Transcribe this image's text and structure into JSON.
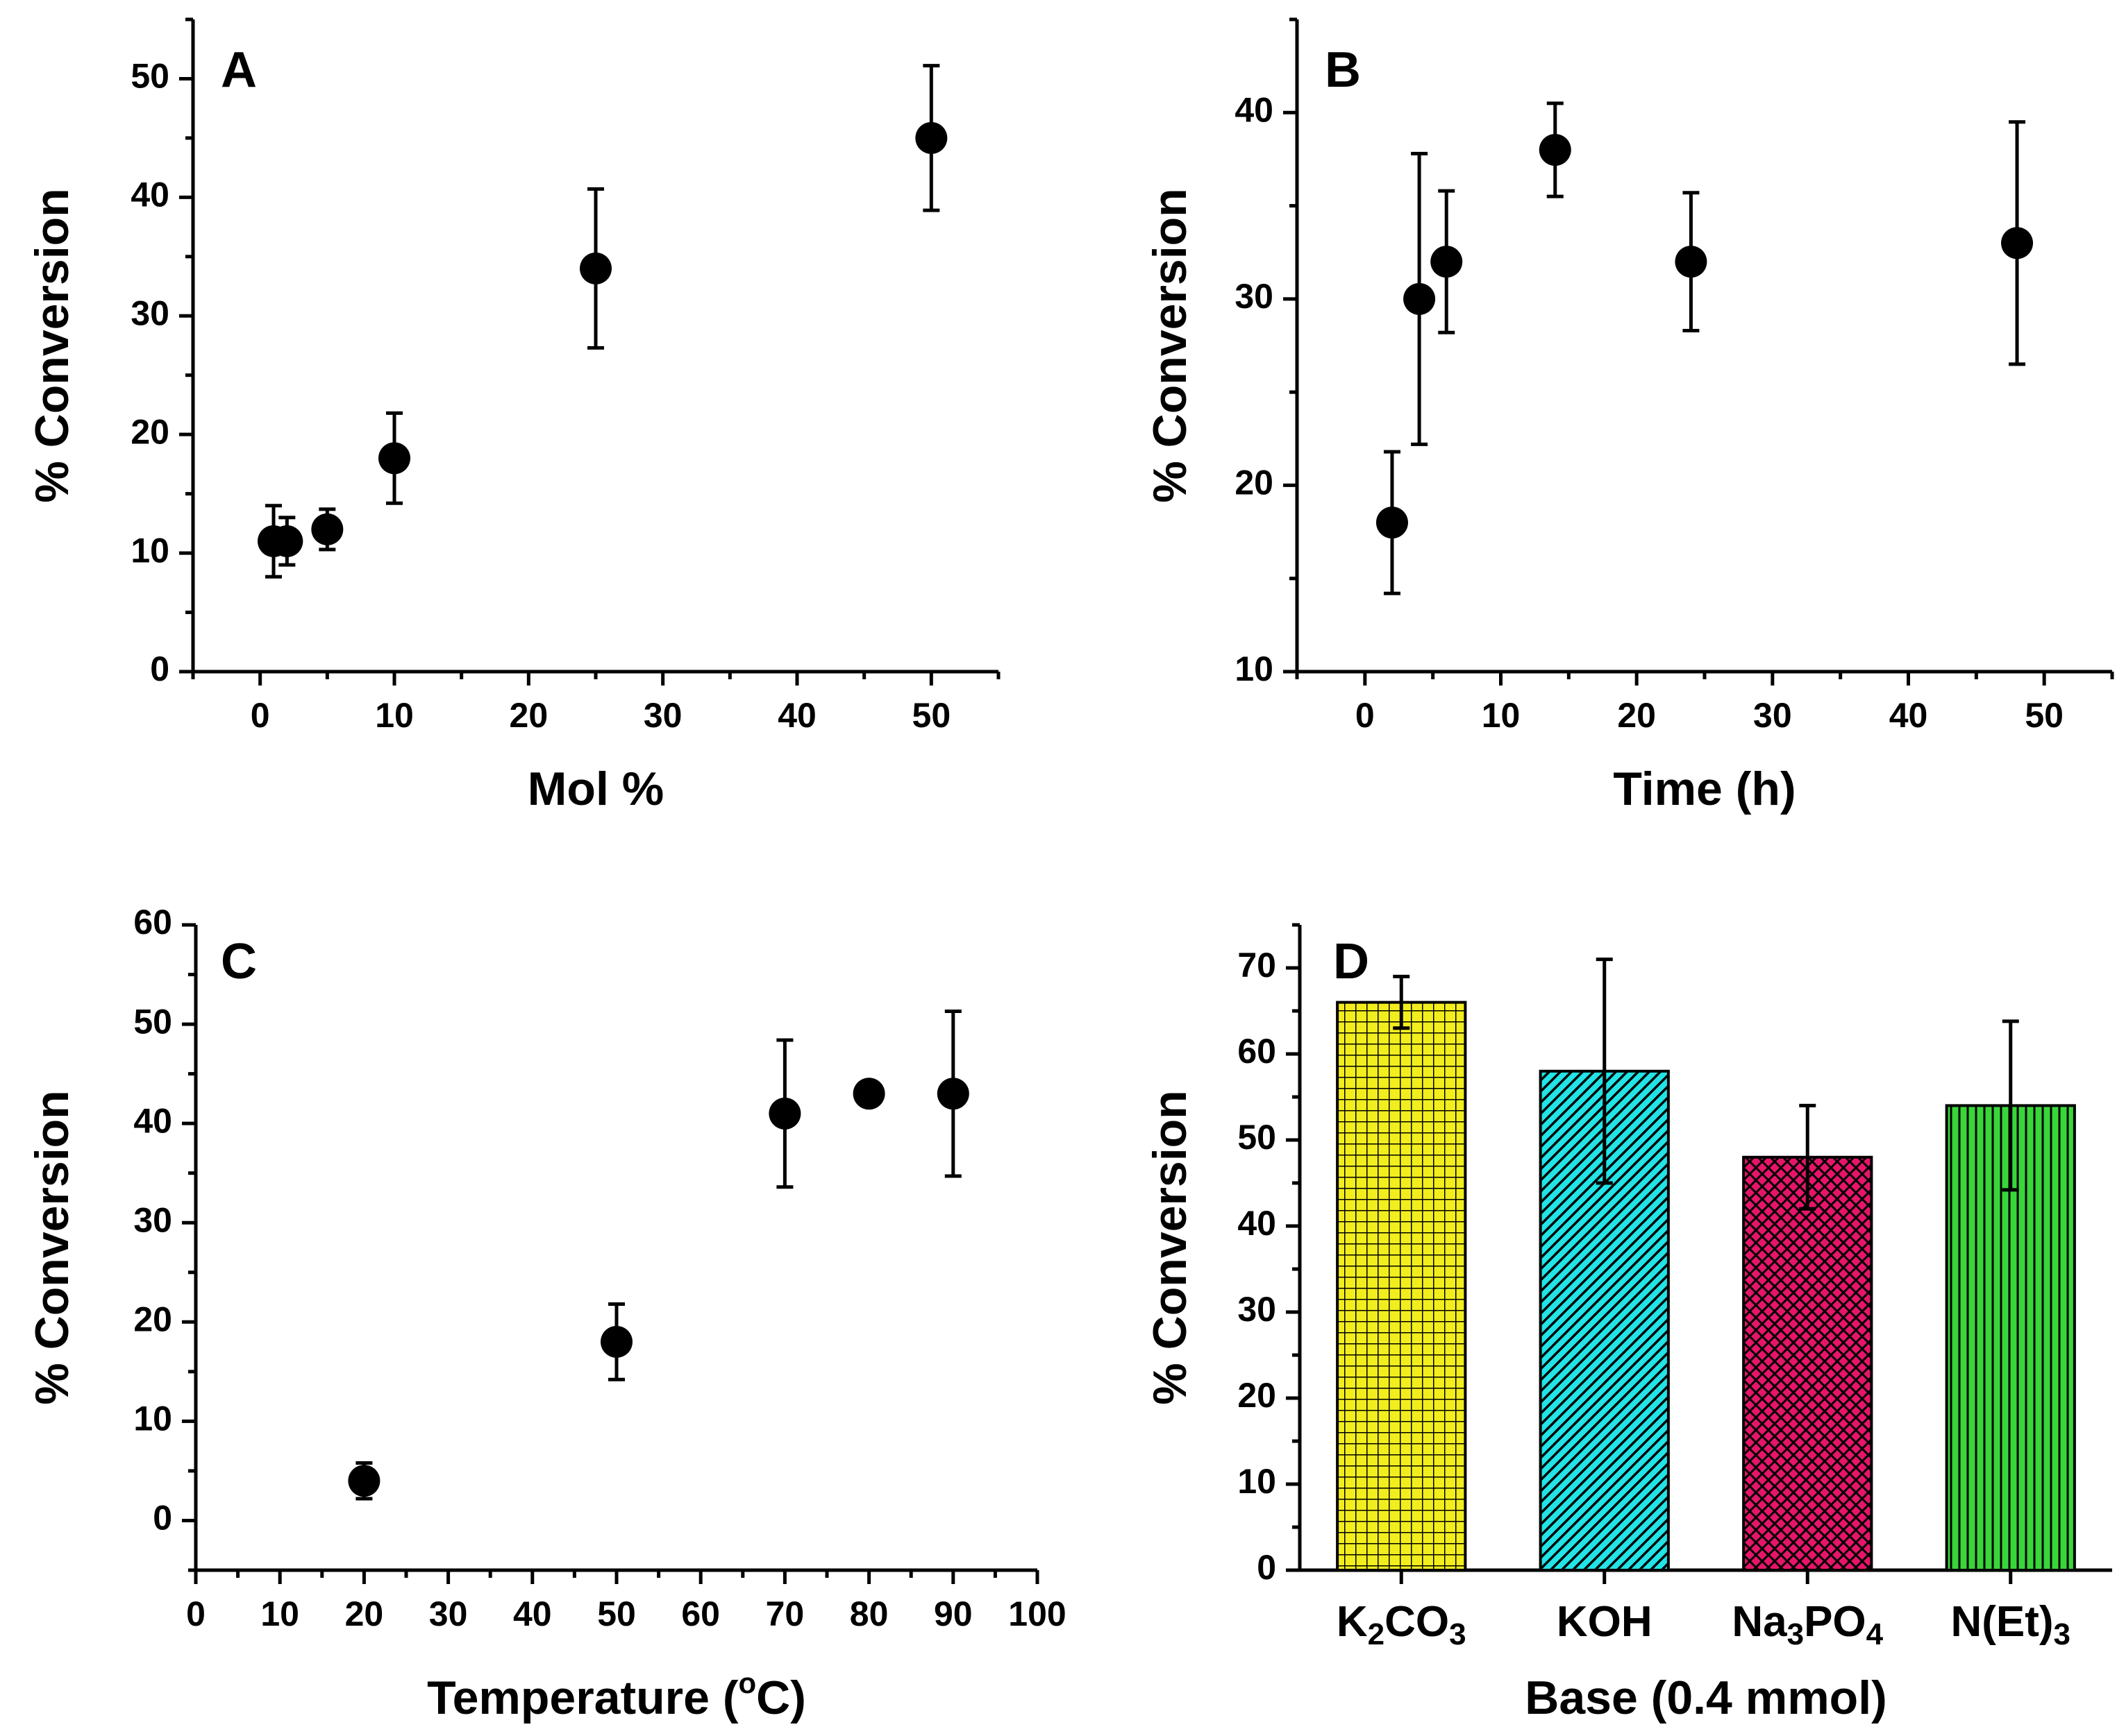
{
  "chart_data": [
    {
      "id": "A",
      "type": "scatter",
      "panel_label": "A",
      "xlabel": "Mol %",
      "ylabel": "% Conversion",
      "xlim": [
        -5,
        55
      ],
      "ylim": [
        0,
        55
      ],
      "xticks": [
        0,
        10,
        20,
        30,
        40,
        50
      ],
      "yticks": [
        0,
        10,
        20,
        30,
        40,
        50
      ],
      "xtick_labels": [
        "0",
        "10",
        "20",
        "30",
        "40",
        "50"
      ],
      "ytick_labels": [
        "0",
        "10",
        "20",
        "30",
        "40",
        "50"
      ],
      "series": [
        {
          "name": "conversion",
          "x": [
            1,
            2,
            5,
            10,
            25,
            50
          ],
          "y": [
            11,
            11,
            12,
            18,
            34,
            45
          ],
          "err": [
            3,
            2,
            1.7,
            3.8,
            6.7,
            6.1
          ]
        }
      ]
    },
    {
      "id": "B",
      "type": "scatter",
      "panel_label": "B",
      "xlabel": "Time (h)",
      "ylabel": "% Conversion",
      "xlim": [
        -5,
        55
      ],
      "ylim": [
        10,
        45
      ],
      "xticks": [
        0,
        10,
        20,
        30,
        40,
        50
      ],
      "yticks": [
        10,
        20,
        30,
        40
      ],
      "xtick_labels": [
        "0",
        "10",
        "20",
        "30",
        "40",
        "50"
      ],
      "ytick_labels": [
        "10",
        "20",
        "30",
        "40"
      ],
      "series": [
        {
          "name": "conversion",
          "x": [
            2,
            4,
            6,
            14,
            24,
            48
          ],
          "y": [
            18,
            30,
            32,
            38,
            32,
            33
          ],
          "err": [
            3.8,
            7.8,
            3.8,
            2.5,
            3.7,
            6.5
          ]
        }
      ]
    },
    {
      "id": "C",
      "type": "scatter",
      "panel_label": "C",
      "xlabel": "Temperature (",
      "xlabel_deg": "o",
      "xlabel_end": "C)",
      "ylabel": "% Conversion",
      "xlim": [
        0,
        100
      ],
      "ylim": [
        -5,
        60
      ],
      "xticks": [
        0,
        10,
        20,
        30,
        40,
        50,
        60,
        70,
        80,
        90,
        100
      ],
      "yticks": [
        0,
        10,
        20,
        30,
        40,
        50,
        60
      ],
      "xtick_labels": [
        "0",
        "10",
        "20",
        "30",
        "40",
        "50",
        "60",
        "70",
        "80",
        "90",
        "100"
      ],
      "ytick_labels": [
        "0",
        "10",
        "20",
        "30",
        "40",
        "50",
        "60"
      ],
      "series": [
        {
          "name": "conversion",
          "x": [
            20,
            50,
            70,
            80,
            90
          ],
          "y": [
            4,
            18,
            41,
            43,
            43
          ],
          "err": [
            1.8,
            3.8,
            7.4,
            1.2,
            8.3
          ]
        }
      ]
    },
    {
      "id": "D",
      "type": "bar",
      "panel_label": "D",
      "xlabel": "Base (0.4 mmol)",
      "ylabel": "% Conversion",
      "ylim": [
        0,
        75
      ],
      "yticks": [
        0,
        10,
        20,
        30,
        40,
        50,
        60,
        70
      ],
      "ytick_labels": [
        "0",
        "10",
        "20",
        "30",
        "40",
        "50",
        "60",
        "70"
      ],
      "categories": [
        {
          "main": "K",
          "sub": "2",
          "rest": "CO",
          "sub2": "3"
        },
        {
          "main": "KOH",
          "sub": "",
          "rest": "",
          "sub2": ""
        },
        {
          "main": "Na",
          "sub": "3",
          "rest": "PO",
          "sub2": "4"
        },
        {
          "main": "N(Et)",
          "sub": "3",
          "rest": "",
          "sub2": ""
        }
      ],
      "values": [
        66,
        58,
        48,
        54
      ],
      "err": [
        3,
        13,
        6,
        9.8
      ],
      "bar_colors": [
        "#f2ee1e",
        "#22e3e6",
        "#e6156a",
        "#39d63a"
      ],
      "bar_patterns": [
        "grid",
        "diagonal",
        "crosshatch",
        "vertical"
      ]
    }
  ]
}
